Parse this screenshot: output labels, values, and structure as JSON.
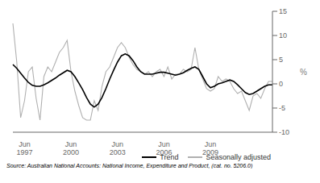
{
  "chart_data": {
    "type": "line",
    "categories": [
      null,
      null,
      null,
      "Jun 1997",
      null,
      null,
      null,
      null,
      null,
      null,
      null,
      null,
      null,
      null,
      null,
      "Jun 2000",
      null,
      null,
      null,
      null,
      null,
      null,
      null,
      null,
      null,
      null,
      null,
      "Jun 2003",
      null,
      null,
      null,
      null,
      null,
      null,
      null,
      null,
      null,
      null,
      null,
      "Jun 2006",
      null,
      null,
      null,
      null,
      null,
      null,
      null,
      null,
      null,
      null,
      null,
      "Jun 2009",
      null,
      null,
      null,
      null,
      null,
      null,
      null,
      null,
      null,
      null,
      null,
      null,
      null,
      null,
      null,
      null
    ],
    "series": [
      {
        "name": "Trend",
        "color": "#000000",
        "values": [
          4.0,
          3.2,
          2.2,
          1.2,
          0.3,
          -0.3,
          -0.5,
          -0.5,
          -0.2,
          0.2,
          0.7,
          1.2,
          1.8,
          2.3,
          2.8,
          2.5,
          1.5,
          0.2,
          -1.2,
          -2.8,
          -4.2,
          -4.8,
          -4.2,
          -2.8,
          -1.0,
          1.0,
          2.8,
          4.5,
          5.8,
          6.2,
          5.8,
          4.8,
          3.5,
          2.5,
          2.0,
          2.0,
          2.0,
          2.2,
          2.4,
          2.4,
          2.2,
          2.0,
          1.8,
          2.0,
          2.3,
          2.8,
          3.2,
          3.5,
          3.0,
          1.5,
          0.0,
          -0.8,
          -0.5,
          0.0,
          0.2,
          0.5,
          0.8,
          0.5,
          -0.2,
          -1.0,
          -1.8,
          -2.2,
          -2.0,
          -1.5,
          -1.0,
          -0.5,
          -0.2,
          -0.2
        ]
      },
      {
        "name": "Seasonally adjusted",
        "color": "#b0b0b0",
        "values": [
          12.5,
          4.5,
          -7.0,
          -3.5,
          2.5,
          3.5,
          -3.0,
          -7.5,
          1.5,
          3.5,
          2.5,
          4.5,
          6.5,
          7.5,
          9.0,
          2.5,
          -1.5,
          -4.5,
          -7.0,
          -7.5,
          -7.5,
          -3.5,
          -5.5,
          -0.5,
          2.5,
          3.5,
          5.5,
          7.5,
          8.5,
          7.5,
          5.5,
          4.0,
          3.0,
          2.5,
          2.0,
          2.5,
          1.5,
          2.5,
          3.0,
          1.5,
          3.5,
          1.0,
          2.0,
          2.0,
          3.0,
          2.5,
          3.0,
          7.5,
          3.0,
          1.0,
          -1.0,
          -1.5,
          -1.0,
          1.5,
          0.5,
          1.0,
          0.5,
          -1.0,
          -2.0,
          -1.5,
          -3.5,
          -5.5,
          -2.5,
          -2.0,
          -3.0,
          -1.0,
          0.5,
          0.5
        ]
      }
    ],
    "ylabel": "%",
    "ylim": [
      -10,
      15
    ],
    "yticks": [
      -10,
      -5,
      0,
      5,
      10,
      15
    ],
    "legend": "lower right",
    "annotations": [
      "Source: Australian National Accounts: National Income, Expenditure and Product, (cat. no. 5206.0)"
    ]
  }
}
